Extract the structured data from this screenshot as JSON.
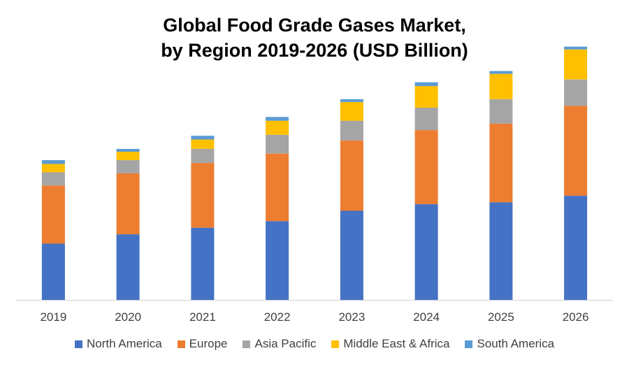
{
  "chart_data": {
    "type": "bar",
    "stacked": true,
    "title": "Global Food Grade Gases Market, by Region 2019-2026 (USD Billion)",
    "title_lines": [
      "Global Food Grade Gases Market,",
      "by Region 2019-2026 (USD Billion)"
    ],
    "xlabel": "",
    "ylabel": "",
    "grid": false,
    "legend_position": "bottom",
    "categories": [
      "2019",
      "2020",
      "2021",
      "2022",
      "2023",
      "2024",
      "2025",
      "2026"
    ],
    "series": [
      {
        "name": "North America",
        "color": "#4472C4",
        "values": [
          60,
          70,
          77,
          84,
          95,
          102,
          104,
          111
        ]
      },
      {
        "name": "Europe",
        "color": "#ED7D31",
        "values": [
          62,
          65,
          69,
          72,
          75,
          79,
          84,
          96
        ]
      },
      {
        "name": "Asia Pacific",
        "color": "#A5A5A5",
        "values": [
          14,
          14,
          15,
          20,
          21,
          24,
          26,
          28
        ]
      },
      {
        "name": "Middle East & Africa",
        "color": "#FFC000",
        "values": [
          9,
          9,
          10,
          15,
          20,
          23,
          27,
          32
        ]
      },
      {
        "name": "South America",
        "color": "#5B9BD5",
        "values": [
          4,
          3,
          4,
          4,
          3,
          4,
          3,
          3
        ]
      }
    ],
    "ylim": [
      0,
      275
    ]
  }
}
